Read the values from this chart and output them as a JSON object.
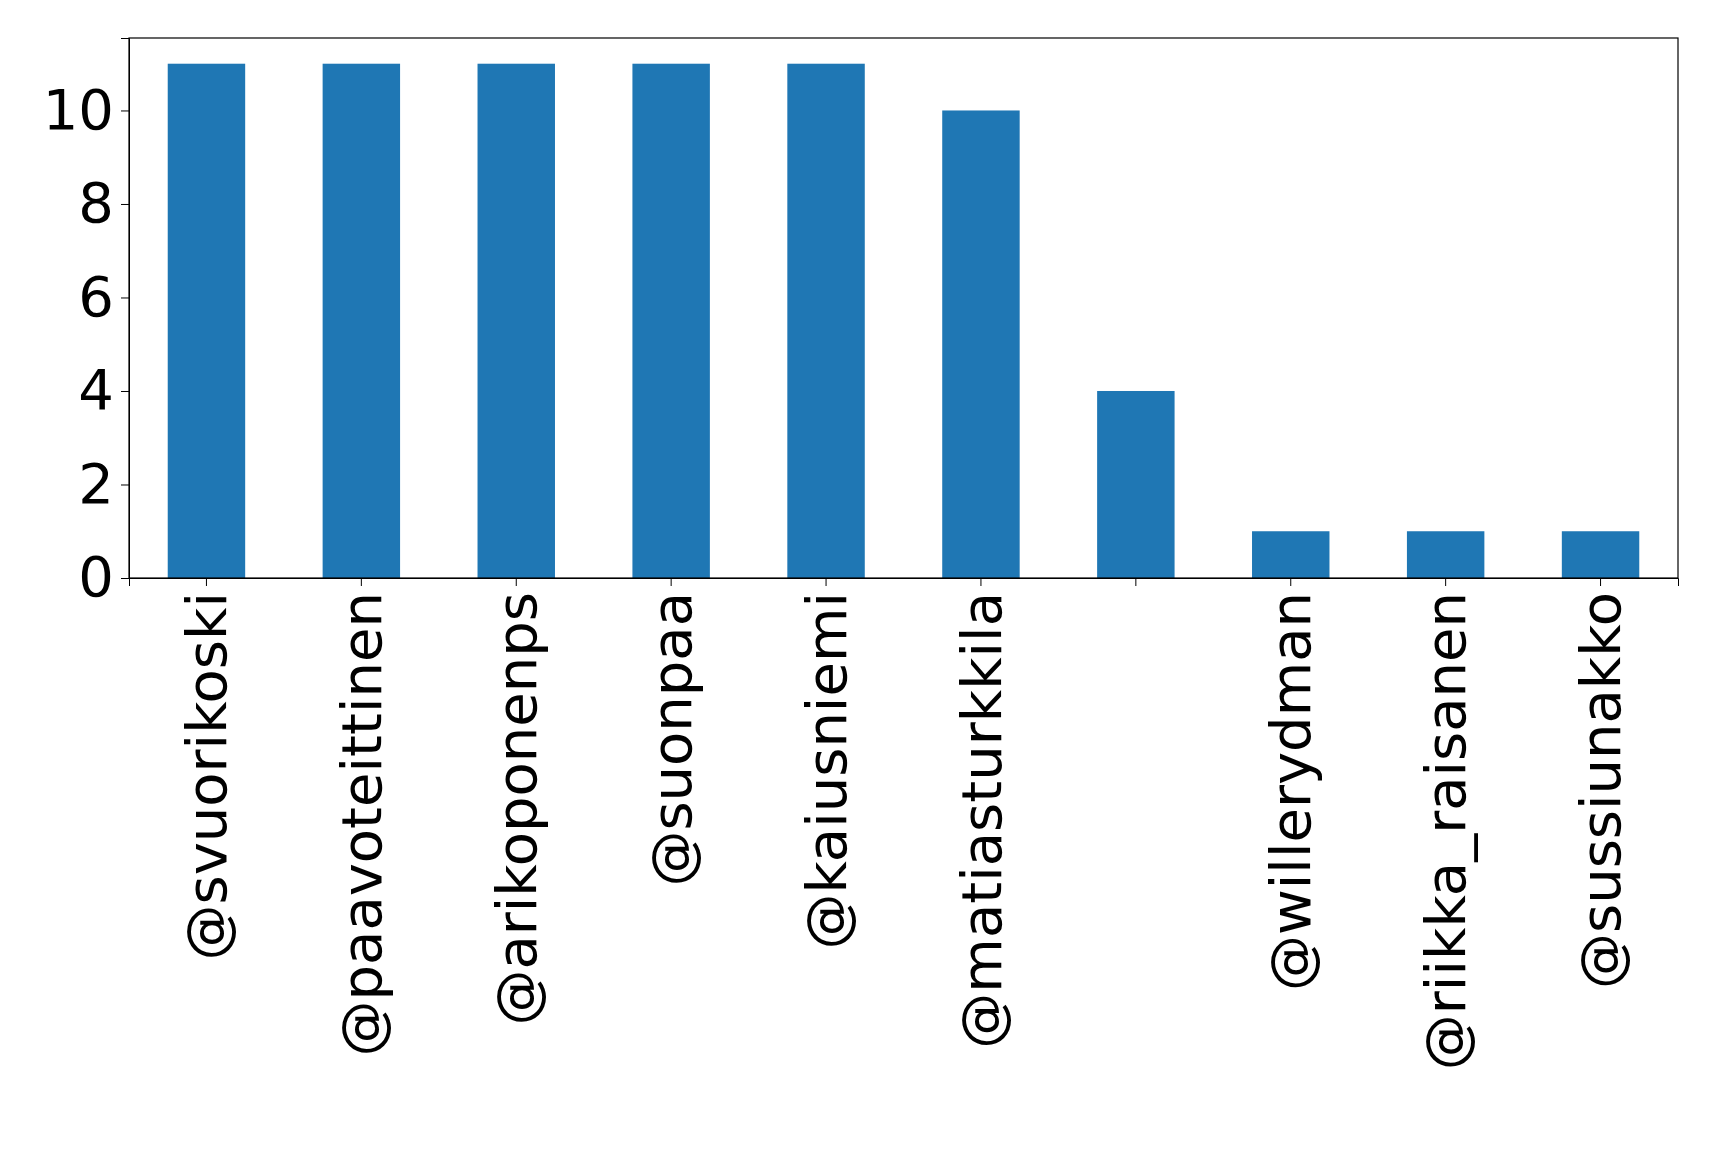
{
  "chart_data": {
    "type": "bar",
    "categories": [
      "@svuorikoski",
      "@paavoteittinen",
      "@arikoponenps",
      "@suonpaa",
      "@kaiusniemi",
      "@matiasturkkila",
      null,
      "@willerydman",
      "@riikka_raisanen",
      "@sussiunakko"
    ],
    "values": [
      11,
      11,
      11,
      11,
      11,
      10,
      4,
      1,
      1,
      1
    ],
    "color": "#1f77b4",
    "ylim": [
      0,
      11.55
    ],
    "yticks": [
      0,
      2,
      4,
      6,
      8,
      10
    ],
    "grid": false
  }
}
